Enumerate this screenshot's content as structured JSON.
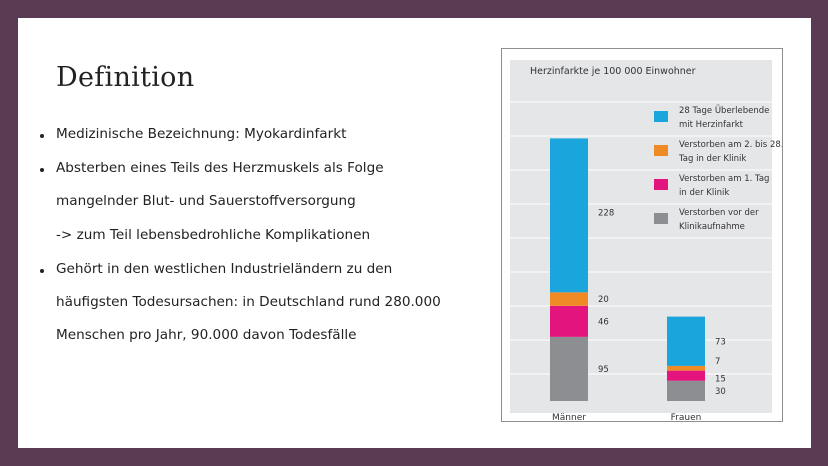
{
  "slide": {
    "title": "Definition",
    "bullets": [
      {
        "lines": [
          "Medizinische Bezeichnung: Myokardinfarkt"
        ]
      },
      {
        "lines": [
          "Absterben eines Teils des Herzmuskels als Folge",
          "mangelnder Blut- und Sauerstoffversorgung"
        ]
      },
      {
        "lines": [
          "-> zum Teil lebensbedrohliche Komplikationen"
        ],
        "sub": true
      },
      {
        "lines": [
          "Gehört in den westlichen Industrieländern zu den",
          "häufigsten Todesursachen: in Deutschland rund 280.000",
          "Menschen pro Jahr, 90.000 davon Todesfälle"
        ]
      }
    ]
  },
  "chart_data": {
    "type": "bar",
    "stacked": true,
    "title": "Herzinfarkte je 100 000 Einwohner",
    "categories": [
      "Männer",
      "Frauen"
    ],
    "series": [
      {
        "name": "Verstorben vor der Klinikaufnahme",
        "values": [
          95,
          30
        ],
        "color": "#8d8e91"
      },
      {
        "name": "Verstorben am 1. Tag in der Klinik",
        "values": [
          46,
          15
        ],
        "color": "#e4147f"
      },
      {
        "name": "Verstorben am 2. bis 28. Tag in der Klinik",
        "values": [
          20,
          7
        ],
        "color": "#f08a24"
      },
      {
        "name": "28 Tage Überlebende mit Herzinfarkt",
        "values": [
          228,
          73
        ],
        "color": "#1aa5dc"
      }
    ],
    "legend": [
      {
        "lines": [
          "28 Tage Überlebende",
          "mit Herzinfarkt"
        ],
        "color": "#1aa5dc"
      },
      {
        "lines": [
          "Verstorben am 2. bis 28.",
          "Tag in der Klinik"
        ],
        "color": "#f08a24"
      },
      {
        "lines": [
          "Verstorben am 1. Tag",
          "in der Klinik"
        ],
        "color": "#e4147f"
      },
      {
        "lines": [
          "Verstorben vor der",
          "Klinikaufnahme"
        ],
        "color": "#8d8e91"
      }
    ],
    "legend_position": "top-right",
    "grid": "horizontal"
  }
}
